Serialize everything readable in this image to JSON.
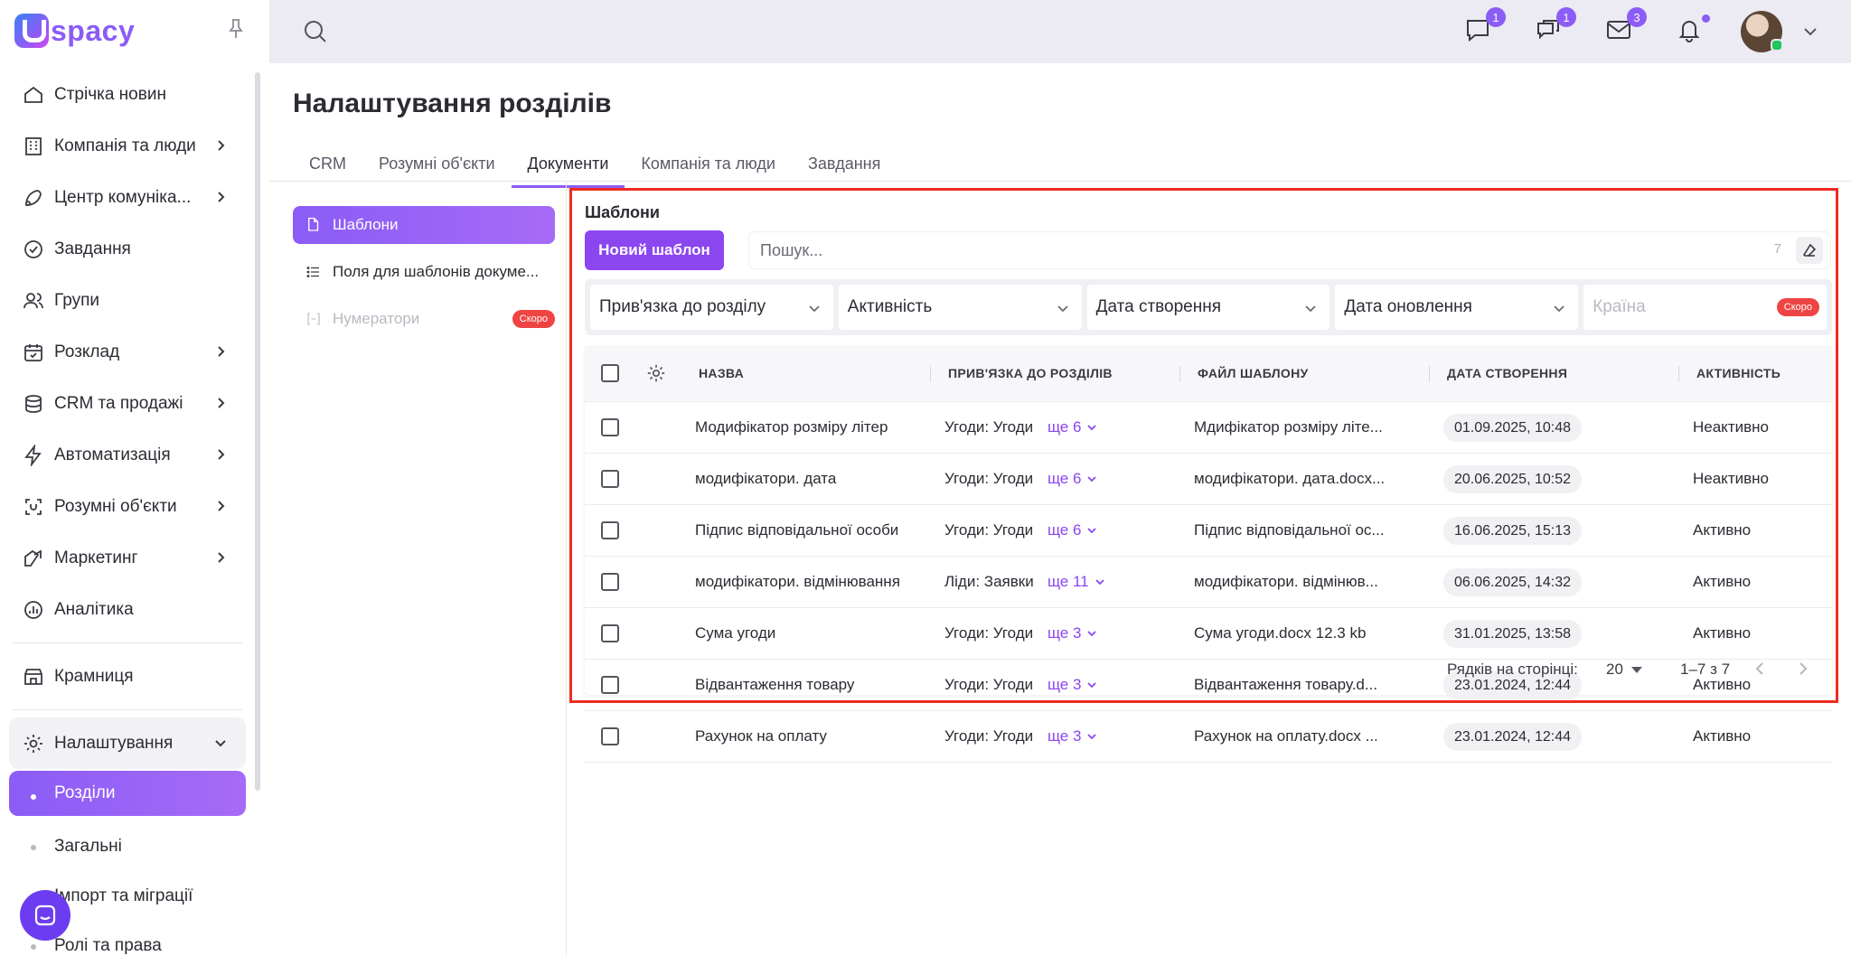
{
  "app": {
    "logo_text": "spacy"
  },
  "sidebar": {
    "items": [
      {
        "label": "Стрічка новин",
        "icon": "home-icon",
        "has_children": false
      },
      {
        "label": "Компанія та люди",
        "icon": "building-icon",
        "has_children": true
      },
      {
        "label": "Центр комуніка...",
        "icon": "communication-icon",
        "has_children": true
      },
      {
        "label": "Завдання",
        "icon": "check-circle-icon",
        "has_children": false
      },
      {
        "label": "Групи",
        "icon": "users-icon",
        "has_children": false
      },
      {
        "label": "Розклад",
        "icon": "calendar-icon",
        "has_children": true
      },
      {
        "label": "CRM та продажі",
        "icon": "database-icon",
        "has_children": true
      },
      {
        "label": "Автоматизація",
        "icon": "lightning-icon",
        "has_children": true
      },
      {
        "label": "Розумні об'єкти",
        "icon": "smart-object-icon",
        "has_children": true
      },
      {
        "label": "Маркетинг",
        "icon": "marketing-icon",
        "has_children": true
      },
      {
        "label": "Аналітика",
        "icon": "analytics-icon",
        "has_children": false
      }
    ],
    "store": {
      "label": "Крамниця",
      "icon": "store-icon"
    },
    "settings": {
      "label": "Налаштування",
      "icon": "gear-icon",
      "children": [
        {
          "label": "Розділи",
          "active": true
        },
        {
          "label": "Загальні",
          "active": false
        },
        {
          "label": "Імпорт та міграції",
          "active": false
        },
        {
          "label": "Ролі та права",
          "active": false
        }
      ]
    }
  },
  "topbar": {
    "badges": {
      "chat": "1",
      "comments": "1",
      "mail": "3"
    }
  },
  "page": {
    "title": "Налаштування розділів",
    "tabs": [
      {
        "label": "CRM",
        "active": false
      },
      {
        "label": "Розумні об'єкти",
        "active": false
      },
      {
        "label": "Документи",
        "active": true
      },
      {
        "label": "Компанія та люди",
        "active": false
      },
      {
        "label": "Завдання",
        "active": false
      }
    ],
    "subnav": [
      {
        "label": "Шаблони",
        "icon": "file-icon",
        "active": true
      },
      {
        "label": "Поля для шаблонів докуме...",
        "icon": "list-icon",
        "active": false
      },
      {
        "label": "Нумератори",
        "icon": "brackets-icon",
        "active": false,
        "disabled": true,
        "badge": "Скоро"
      }
    ]
  },
  "templates": {
    "section_title": "Шаблони",
    "new_button": "Новий шаблон",
    "search_placeholder": "Пошук...",
    "search_count": "7",
    "filters": [
      {
        "label": "Прив'язка до розділу",
        "disabled": false
      },
      {
        "label": "Активність",
        "disabled": false
      },
      {
        "label": "Дата створення",
        "disabled": false
      },
      {
        "label": "Дата оновлення",
        "disabled": false
      },
      {
        "label": "Країна",
        "disabled": true,
        "badge": "Скоро"
      }
    ],
    "columns": [
      "НАЗВА",
      "ПРИВ'ЯЗКА ДО РОЗДІЛІВ",
      "ФАЙЛ ШАБЛОНУ",
      "ДАТА СТВОРЕННЯ",
      "АКТИВНІСТЬ"
    ],
    "rows": [
      {
        "name": "Модифікатор розміру літер",
        "binding": "Угоди: Угоди",
        "more": "ще 6",
        "file": "Мдифікатор розміру літе...",
        "created": "01.09.2025, 10:48",
        "status": "Неактивно"
      },
      {
        "name": "модифікатори. дата",
        "binding": "Угоди: Угоди",
        "more": "ще 6",
        "file": "модифікатори. дата.docx...",
        "created": "20.06.2025, 10:52",
        "status": "Неактивно"
      },
      {
        "name": "Підпис відповідальної особи",
        "binding": "Угоди: Угоди",
        "more": "ще 6",
        "file": "Підпис відповідальної ос...",
        "created": "16.06.2025, 15:13",
        "status": "Активно"
      },
      {
        "name": "модифікатори. відмінювання",
        "binding": "Ліди: Заявки",
        "more": "ще 11",
        "file": "модифікатори. відмінюв...",
        "created": "06.06.2025, 14:32",
        "status": "Активно"
      },
      {
        "name": "Сума угоди",
        "binding": "Угоди: Угоди",
        "more": "ще 3",
        "file": "Сума угоди.docx 12.3 kb",
        "created": "31.01.2025, 13:58",
        "status": "Активно"
      },
      {
        "name": "Відвантаження товару",
        "binding": "Угоди: Угоди",
        "more": "ще 3",
        "file": "Відвантаження товару.d...",
        "created": "23.01.2024, 12:44",
        "status": "Активно"
      },
      {
        "name": "Рахунок на оплату",
        "binding": "Угоди: Угоди",
        "more": "ще 3",
        "file": "Рахунок на оплату.docx ...",
        "created": "23.01.2024, 12:44",
        "status": "Активно"
      }
    ],
    "pagination": {
      "rows_label": "Рядків на сторінці:",
      "per_page": "20",
      "range": "1–7 з 7"
    }
  }
}
